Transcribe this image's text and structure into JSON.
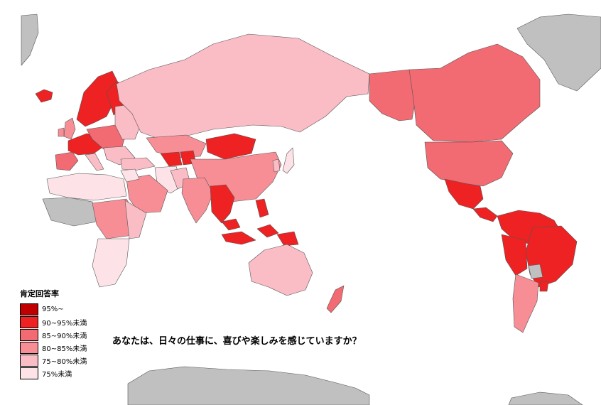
{
  "legend": {
    "title": "肯定回答率",
    "items": [
      {
        "label": "95%~",
        "color": "#c00000"
      },
      {
        "label": "90~95%未満",
        "color": "#ee2222"
      },
      {
        "label": "85~90%未満",
        "color": "#f26a72"
      },
      {
        "label": "80~85%未満",
        "color": "#f78e96"
      },
      {
        "label": "75~80%未満",
        "color": "#fbbdc5"
      },
      {
        "label": "75%未満",
        "color": "#fde3e7"
      }
    ]
  },
  "question": "あなたは、日々の仕事に、喜びや楽しみを感じていますか？",
  "no_data_color": "#c0c0c0"
}
